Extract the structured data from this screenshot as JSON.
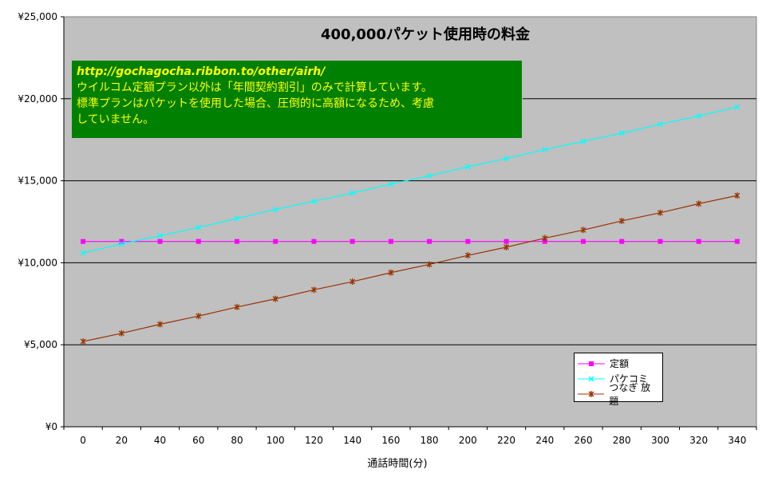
{
  "chart_data": {
    "type": "line",
    "title": "400,000パケット使用時の料金",
    "xlabel": "通話時間(分)",
    "ylabel": "",
    "x": [
      0,
      20,
      40,
      60,
      80,
      100,
      120,
      140,
      160,
      180,
      200,
      220,
      240,
      260,
      280,
      300,
      320,
      340
    ],
    "ylim": [
      0,
      25000
    ],
    "yticks": [
      0,
      5000,
      10000,
      15000,
      20000,
      25000
    ],
    "ytick_labels": [
      "¥0",
      "¥5,000",
      "¥10,000",
      "¥15,000",
      "¥20,000",
      "¥25,000"
    ],
    "grid": "horizontal",
    "legend_position": "bottom-right",
    "series": [
      {
        "name": "定額",
        "color": "#ff00ff",
        "marker": "square",
        "values": [
          11300,
          11300,
          11300,
          11300,
          11300,
          11300,
          11300,
          11300,
          11300,
          11300,
          11300,
          11300,
          11300,
          11300,
          11300,
          11300,
          11300,
          11300
        ]
      },
      {
        "name": "パケコミ",
        "color": "#00ffff",
        "marker": "x",
        "values": [
          10600,
          11150,
          11650,
          12150,
          12700,
          13250,
          13750,
          14250,
          14800,
          15300,
          15850,
          16350,
          16900,
          17400,
          17900,
          18450,
          18950,
          19500
        ]
      },
      {
        "name": "つなぎ 放題",
        "color": "#993300",
        "marker": "star",
        "values": [
          5200,
          5700,
          6250,
          6750,
          7300,
          7800,
          8350,
          8850,
          9400,
          9900,
          10450,
          10950,
          11500,
          12000,
          12550,
          13050,
          13600,
          14100
        ]
      }
    ],
    "annotation": {
      "url": "http://gochagocha.ribbon.to/other/airh/",
      "lines": [
        "ウイルコム定額プラン以外は「年間契約割引」のみで計算しています。",
        "標準プランはパケットを使用した場合、圧倒的に高額になるため、考慮",
        "していません。"
      ],
      "background": "#008000",
      "text_color": "#ffff00"
    },
    "plot_background": "#c0c0c0"
  }
}
